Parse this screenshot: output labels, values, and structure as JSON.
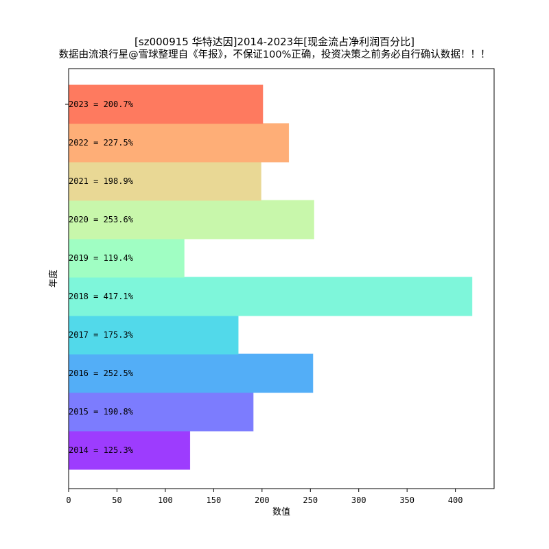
{
  "title": "[sz000915 华特达因]2014-2023年[现金流占净利润百分比]",
  "subtitle": "数据由流浪行星@雪球整理自《年报》，不保证100%正确，投资决策之前务必自行确认数据！！！",
  "chart_data": {
    "type": "bar",
    "orientation": "horizontal",
    "xlabel": "数值",
    "ylabel": "年度",
    "xlim": [
      0,
      440
    ],
    "xticks": [
      0,
      50,
      100,
      150,
      200,
      250,
      300,
      350,
      400
    ],
    "categories": [
      "2014",
      "2015",
      "2016",
      "2017",
      "2018",
      "2019",
      "2020",
      "2021",
      "2022",
      "2023"
    ],
    "values": [
      125.3,
      190.8,
      252.5,
      175.3,
      417.1,
      119.4,
      253.6,
      198.9,
      227.5,
      200.7
    ],
    "data_labels": [
      "2014 = 125.3%",
      "2015 = 190.8%",
      "2016 = 252.5%",
      "2017 = 175.3%",
      "2018 = 417.1%",
      "2019 = 119.4%",
      "2020 = 253.6%",
      "2021 = 198.9%",
      "2022 = 227.5%",
      "2023 = 200.7%"
    ],
    "colors": [
      "#9d3cfe",
      "#7c7cfe",
      "#53aef7",
      "#52d9ea",
      "#7ef6da",
      "#a0fec3",
      "#c8f7ab",
      "#e9d895",
      "#feae77",
      "#fe7a5f"
    ],
    "grid": false,
    "legend": "none"
  }
}
